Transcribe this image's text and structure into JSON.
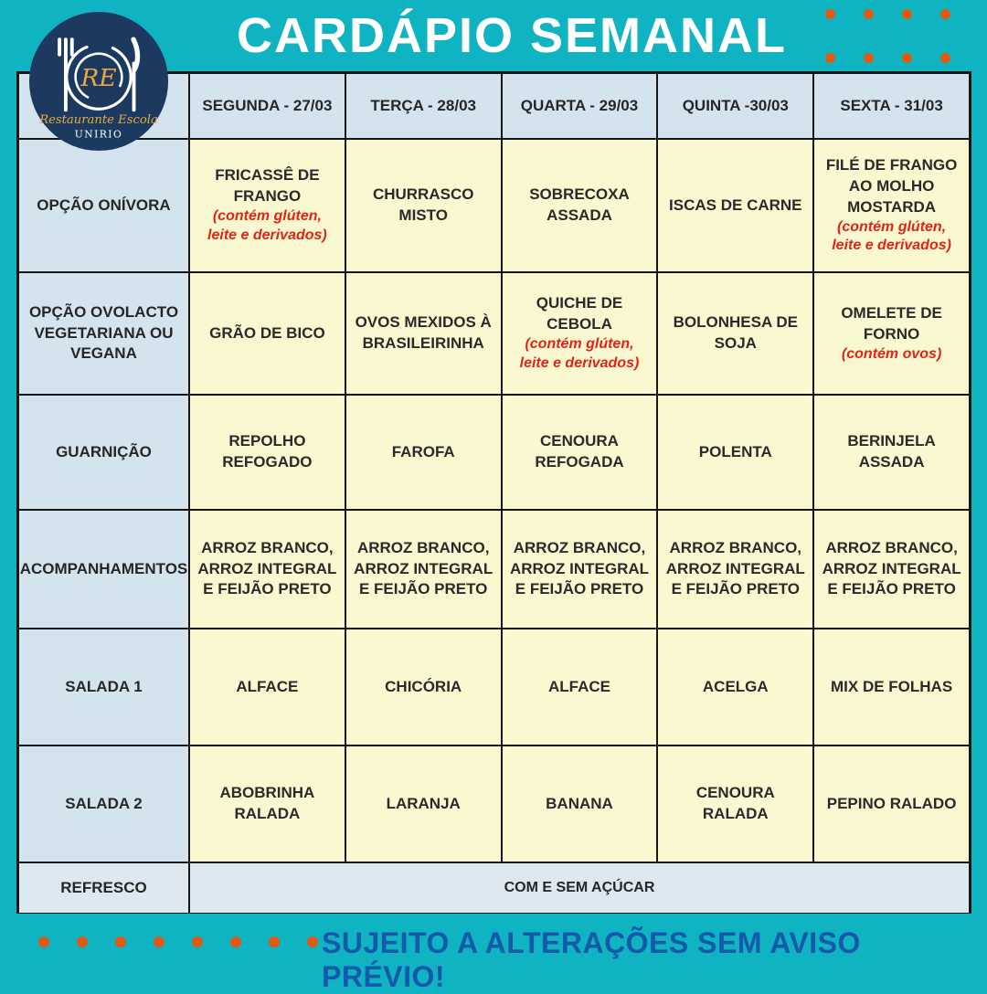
{
  "brand": {
    "logo": {
      "initials": "RE",
      "name": "Restaurante Escola",
      "org": "UNIRIO"
    },
    "colors": {
      "background_teal": "#10b3c1",
      "dot_orange": "#e05a10",
      "logo_navy": "#1c3a5f",
      "logo_gold": "#eda93f",
      "header_cell_blue": "#d3e4ee",
      "menu_cell_yellow": "#faf8d0",
      "allergen_red": "#e02417",
      "notice_blue": "#1459aa"
    }
  },
  "header": {
    "title": "CARDÁPIO SEMANAL"
  },
  "menu": {
    "columns": [
      "SEGUNDA - 27/03",
      "TERÇA - 28/03",
      "QUARTA - 29/03",
      "QUINTA -30/03",
      "SEXTA - 31/03"
    ],
    "rows": [
      {
        "label": "OPÇÃO ONÍVORA",
        "cells": [
          {
            "text": "FRICASSÊ DE FRANGO",
            "allergen": "(contém glúten, leite e derivados)"
          },
          {
            "text": "CHURRASCO MISTO",
            "allergen": ""
          },
          {
            "text": "SOBRECOXA ASSADA",
            "allergen": ""
          },
          {
            "text": "ISCAS DE CARNE",
            "allergen": ""
          },
          {
            "text": "FILÉ DE FRANGO AO MOLHO MOSTARDA",
            "allergen": "(contém glúten, leite e derivados)"
          }
        ]
      },
      {
        "label": "OPÇÃO OVOLACTO VEGETARIANA OU VEGANA",
        "cells": [
          {
            "text": "GRÃO DE BICO",
            "allergen": ""
          },
          {
            "text": "OVOS MEXIDOS À BRASILEIRINHA",
            "allergen": ""
          },
          {
            "text": "QUICHE DE CEBOLA",
            "allergen": "(contém glúten, leite e derivados)"
          },
          {
            "text": "BOLONHESA DE SOJA",
            "allergen": ""
          },
          {
            "text": "OMELETE DE FORNO",
            "allergen": "(contém ovos)"
          }
        ]
      },
      {
        "label": "GUARNIÇÃO",
        "cells": [
          {
            "text": "REPOLHO REFOGADO",
            "allergen": ""
          },
          {
            "text": "FAROFA",
            "allergen": ""
          },
          {
            "text": "CENOURA REFOGADA",
            "allergen": ""
          },
          {
            "text": "POLENTA",
            "allergen": ""
          },
          {
            "text": "BERINJELA ASSADA",
            "allergen": ""
          }
        ]
      },
      {
        "label": "ACOMPANHAMENTOS",
        "cells": [
          {
            "text": "ARROZ BRANCO, ARROZ INTEGRAL E FEIJÃO PRETO",
            "allergen": ""
          },
          {
            "text": "ARROZ BRANCO, ARROZ INTEGRAL E FEIJÃO PRETO",
            "allergen": ""
          },
          {
            "text": "ARROZ BRANCO, ARROZ INTEGRAL E FEIJÃO PRETO",
            "allergen": ""
          },
          {
            "text": "ARROZ BRANCO, ARROZ INTEGRAL E FEIJÃO PRETO",
            "allergen": ""
          },
          {
            "text": "ARROZ BRANCO, ARROZ INTEGRAL E FEIJÃO PRETO",
            "allergen": ""
          }
        ]
      },
      {
        "label": "SALADA 1",
        "cells": [
          {
            "text": "ALFACE",
            "allergen": ""
          },
          {
            "text": "CHICÓRIA",
            "allergen": ""
          },
          {
            "text": "ALFACE",
            "allergen": ""
          },
          {
            "text": "ACELGA",
            "allergen": ""
          },
          {
            "text": "MIX DE FOLHAS",
            "allergen": ""
          }
        ]
      },
      {
        "label": "SALADA 2",
        "cells": [
          {
            "text": "ABOBRINHA RALADA",
            "allergen": ""
          },
          {
            "text": "LARANJA",
            "allergen": ""
          },
          {
            "text": "BANANA",
            "allergen": ""
          },
          {
            "text": "CENOURA RALADA",
            "allergen": ""
          },
          {
            "text": "PEPINO RALADO",
            "allergen": ""
          }
        ]
      }
    ],
    "footer_row": {
      "label": "REFRESCO",
      "value": "COM E SEM AÇÚCAR"
    }
  },
  "footer": {
    "notice": "SUJEITO A ALTERAÇÕES SEM AVISO PRÉVIO!"
  },
  "decor": {
    "top_dot_rows": 2,
    "top_dot_cols": 4,
    "bottom_dot_count": 8
  }
}
